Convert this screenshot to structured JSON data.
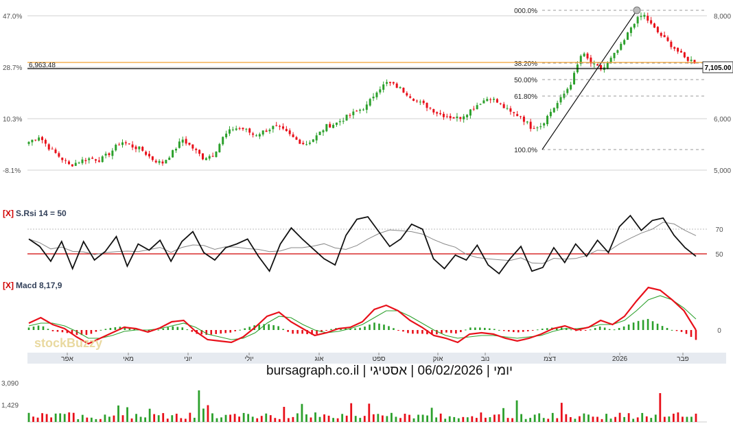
{
  "chart_data": [
    {
      "type": "candlestick",
      "panel": "price",
      "y_left_ticks": [
        "47.0%",
        "28.7%",
        "10.3%",
        "-8.1%"
      ],
      "y_right_ticks": [
        "8,000",
        "6,000",
        "5,000"
      ],
      "right_last_price_label": "7,105.00",
      "left_level_label": "6,963.48",
      "horizontal_level": 6963.48,
      "fib_levels": [
        {
          "label": "000.0%"
        },
        {
          "label": "38.20%"
        },
        {
          "label": "50.00%"
        },
        {
          "label": "61.80%"
        },
        {
          "label": "100.0%"
        }
      ],
      "approx_close_path": [
        5550,
        5660,
        5430,
        5260,
        5090,
        5180,
        5230,
        5200,
        5350,
        5560,
        5470,
        5400,
        5220,
        5130,
        5340,
        5600,
        5430,
        5240,
        5300,
        5650,
        5820,
        5800,
        5680,
        5760,
        5850,
        5750,
        5600,
        5500,
        5640,
        5850,
        5910,
        6030,
        6140,
        6250,
        6560,
        6700,
        6620,
        6480,
        6320,
        6230,
        6100,
        6040,
        6010,
        6150,
        6310,
        6420,
        6280,
        6120,
        6050,
        5840,
        5870,
        6150,
        6400,
        6720,
        7280,
        7050,
        6950,
        7200,
        7460,
        7860,
        8030,
        7760,
        7560,
        7380,
        7180,
        7105
      ],
      "series_color_up": "#2ca02c",
      "series_color_down": "#e8101a"
    },
    {
      "type": "line",
      "panel": "indicator",
      "title": "S.Rsi 14 = 50",
      "close_tag": "[X]",
      "y_ticks": [
        "70",
        "50"
      ],
      "approx_values": [
        62,
        56,
        44,
        60,
        38,
        60,
        45,
        52,
        64,
        40,
        58,
        53,
        61,
        44,
        60,
        68,
        51,
        45,
        55,
        58,
        62,
        48,
        36,
        58,
        71,
        62,
        54,
        46,
        41,
        65,
        78,
        80,
        68,
        56,
        62,
        74,
        70,
        46,
        38,
        49,
        45,
        57,
        41,
        34,
        46,
        56,
        36,
        39,
        55,
        43,
        58,
        48,
        61,
        51,
        72,
        81,
        69,
        77,
        79,
        65,
        55,
        48
      ],
      "reference_line": 50,
      "colors": {
        "main": "#111111",
        "signal": "#888888",
        "reference": "#d00000"
      }
    },
    {
      "type": "macd",
      "panel": "indicator",
      "title": "Macd 8,17,9",
      "close_tag": "[X]",
      "y_ticks": [
        "0"
      ],
      "approx_macd": [
        10,
        18,
        8,
        2,
        -10,
        -20,
        -12,
        -4,
        4,
        2,
        -3,
        3,
        12,
        14,
        -2,
        -14,
        -16,
        -18,
        -10,
        4,
        20,
        26,
        12,
        2,
        -8,
        -4,
        2,
        4,
        12,
        30,
        36,
        28,
        14,
        4,
        -8,
        -12,
        -18,
        -6,
        -4,
        -6,
        -12,
        -16,
        -12,
        -6,
        2,
        6,
        0,
        4,
        14,
        8,
        20,
        42,
        62,
        58,
        44,
        28,
        0
      ],
      "approx_signal": [
        6,
        10,
        10,
        6,
        -2,
        -12,
        -12,
        -8,
        -2,
        0,
        0,
        2,
        6,
        10,
        4,
        -6,
        -10,
        -14,
        -12,
        -4,
        10,
        20,
        18,
        8,
        0,
        -4,
        -2,
        2,
        8,
        18,
        28,
        28,
        20,
        10,
        0,
        -8,
        -12,
        -10,
        -8,
        -8,
        -10,
        -12,
        -10,
        -8,
        -2,
        2,
        2,
        4,
        8,
        8,
        14,
        28,
        44,
        50,
        44,
        32,
        16
      ],
      "colors": {
        "macd": "#e8101a",
        "signal": "#2ca02c",
        "hist_up": "#2ca02c",
        "hist_down": "#e8101a"
      }
    },
    {
      "type": "bar",
      "panel": "volume",
      "y_ticks": [
        "3,090",
        "1,429"
      ],
      "colors": {
        "up": "#2ca02c",
        "down": "#e8101a"
      }
    }
  ],
  "x_axis": {
    "month_labels": [
      "אפר",
      "מאי",
      "יוני",
      "יולי",
      "אוג",
      "ספט",
      "אוק",
      "נוב",
      "דצמ",
      "2026",
      "פבר"
    ]
  },
  "footer": {
    "caption": "יומי | 06/02/2026 | אסטיגי | bursagraph.co.il"
  },
  "watermark": {
    "text": "stockBuzzy"
  },
  "colors": {
    "grid": "#d0d0d0",
    "axis_text": "#505050",
    "level_line": "#f0a030",
    "panel_title": "#33415a",
    "close_tag": "#d00000",
    "x_axis_bg": "#e6eaf0"
  }
}
